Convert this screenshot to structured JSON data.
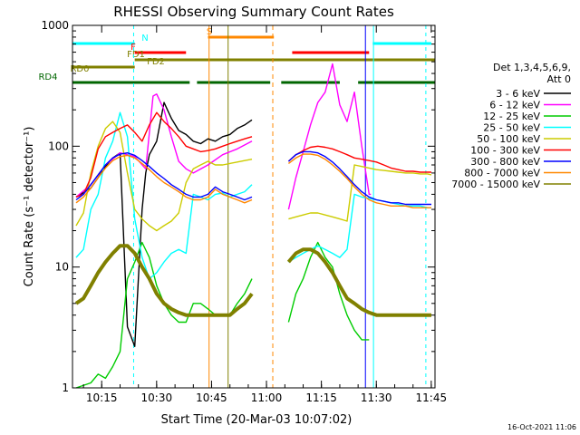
{
  "chart_data": {
    "type": "line",
    "title": "RHESSI Observing Summary Count Rates",
    "xlabel": "Start Time (20-Mar-03 10:07:02)",
    "ylabel": "Count Rate (s⁻¹ detector⁻¹)",
    "yscale": "log",
    "xlim_minutes": [
      7,
      106
    ],
    "ylim": [
      1,
      1000
    ],
    "x_ticks": [
      "10:15",
      "10:30",
      "10:45",
      "11:00",
      "11:15",
      "11:30",
      "11:45"
    ],
    "y_ticks": [
      "1",
      "10",
      "100",
      "1000"
    ],
    "legend_header": [
      "Det 1,3,4,5,6,9,",
      "Att 0"
    ],
    "footer_date": "16-Oct-2021 11:06",
    "legend_position": "right",
    "series": [
      {
        "name": "3 - 6 keV",
        "color": "#000000",
        "x": [
          8,
          12,
          14,
          16,
          18,
          20,
          22,
          24,
          26,
          27,
          28,
          30,
          32,
          34,
          36,
          38,
          40,
          42,
          44,
          46,
          48,
          50,
          52,
          54,
          56
        ],
        "y": [
          38,
          45,
          55,
          68,
          80,
          88,
          3.2,
          2.2,
          30,
          60,
          85,
          110,
          230,
          170,
          135,
          125,
          110,
          105,
          115,
          110,
          120,
          125,
          140,
          150,
          165
        ]
      },
      {
        "name": "6 - 12 keV",
        "color": "#ff00ff",
        "x": [
          8,
          12,
          16,
          20,
          24,
          27,
          29,
          30,
          32,
          34,
          36,
          38,
          40,
          44,
          48,
          52,
          56,
          66,
          68,
          70,
          72,
          74,
          76,
          78,
          80,
          82,
          84,
          86,
          88,
          88.5
        ],
        "y": [
          38,
          48,
          70,
          88,
          82,
          65,
          260,
          270,
          200,
          120,
          75,
          65,
          60,
          70,
          85,
          95,
          110,
          30,
          55,
          90,
          150,
          230,
          280,
          480,
          220,
          160,
          280,
          100,
          40,
          40
        ]
      },
      {
        "name": "12 - 25 keV",
        "color": "#00cc00",
        "x": [
          8,
          12,
          14,
          16,
          18,
          20,
          22,
          24,
          26,
          28,
          30,
          32,
          34,
          36,
          38,
          40,
          42,
          44,
          46,
          48,
          50,
          52,
          54,
          56,
          66,
          68,
          70,
          72,
          74,
          76,
          78,
          80,
          82,
          84,
          86,
          88
        ],
        "y": [
          1,
          1.1,
          1.3,
          1.2,
          1.5,
          2,
          8,
          11,
          16,
          12,
          7,
          5,
          4,
          3.5,
          3.5,
          5,
          5,
          4.5,
          4,
          4,
          4,
          5,
          6,
          8,
          3.5,
          6,
          8,
          12,
          16,
          12,
          10,
          6,
          4,
          3,
          2.5,
          2.5
        ]
      },
      {
        "name": "25 - 50 keV",
        "color": "#00ffff",
        "x": [
          8,
          10,
          12,
          14,
          16,
          18,
          20,
          22,
          24,
          26,
          28,
          30,
          32,
          34,
          36,
          38,
          40,
          42,
          44,
          46,
          48,
          50,
          52,
          54,
          56,
          66,
          68,
          70,
          72,
          74,
          76,
          78,
          80,
          82,
          84,
          86,
          88,
          90,
          92,
          94,
          96,
          98,
          100,
          102,
          104,
          105
        ],
        "y": [
          12,
          14,
          30,
          40,
          80,
          110,
          190,
          120,
          25,
          12,
          8,
          9,
          11,
          13,
          14,
          13,
          40,
          38,
          36,
          40,
          41,
          38,
          40,
          42,
          48,
          11,
          12,
          13,
          14,
          15,
          14,
          13,
          12,
          14,
          40,
          38,
          37,
          36,
          35,
          34,
          33,
          32,
          32,
          32,
          31,
          31
        ]
      },
      {
        "name": "50 - 100 keV",
        "color": "#cccc00",
        "x": [
          8,
          10,
          12,
          14,
          16,
          18,
          20,
          22,
          24,
          26,
          28,
          30,
          32,
          34,
          36,
          38,
          40,
          42,
          44,
          46,
          48,
          50,
          52,
          54,
          56,
          66,
          68,
          70,
          72,
          74,
          76,
          78,
          80,
          82,
          84,
          86,
          88,
          90,
          92,
          94,
          96,
          98,
          100,
          102,
          104,
          105
        ],
        "y": [
          22,
          28,
          60,
          100,
          140,
          160,
          130,
          60,
          30,
          25,
          22,
          20,
          22,
          24,
          28,
          50,
          65,
          70,
          75,
          70,
          70,
          72,
          74,
          76,
          78,
          25,
          26,
          27,
          28,
          28,
          27,
          26,
          25,
          24,
          70,
          68,
          66,
          64,
          63,
          62,
          61,
          60,
          60,
          59,
          59,
          58
        ]
      },
      {
        "name": "100 - 300 keV",
        "color": "#ff0000",
        "x": [
          8,
          10,
          12,
          14,
          16,
          18,
          20,
          22,
          24,
          26,
          28,
          30,
          32,
          34,
          36,
          38,
          40,
          42,
          44,
          46,
          48,
          50,
          52,
          54,
          56,
          66,
          68,
          70,
          72,
          74,
          76,
          78,
          80,
          82,
          84,
          86,
          88,
          90,
          92,
          94,
          96,
          98,
          100,
          102,
          104,
          105
        ],
        "y": [
          38,
          40,
          55,
          95,
          120,
          130,
          140,
          150,
          130,
          110,
          150,
          190,
          160,
          140,
          120,
          100,
          95,
          90,
          92,
          95,
          100,
          105,
          110,
          115,
          120,
          75,
          85,
          92,
          98,
          100,
          98,
          95,
          90,
          85,
          80,
          78,
          76,
          74,
          70,
          66,
          64,
          62,
          62,
          61,
          61,
          61
        ]
      },
      {
        "name": "300 - 800 keV",
        "color": "#0000ff",
        "x": [
          8,
          10,
          12,
          14,
          16,
          18,
          20,
          22,
          24,
          26,
          28,
          30,
          32,
          34,
          36,
          38,
          40,
          42,
          44,
          46,
          48,
          50,
          52,
          54,
          56,
          66,
          68,
          70,
          72,
          74,
          76,
          78,
          80,
          82,
          84,
          86,
          88,
          90,
          92,
          94,
          96,
          98,
          100,
          102,
          104,
          105
        ],
        "y": [
          36,
          40,
          48,
          58,
          70,
          80,
          86,
          88,
          84,
          76,
          68,
          60,
          54,
          48,
          44,
          40,
          38,
          38,
          40,
          46,
          42,
          40,
          38,
          36,
          38,
          75,
          85,
          90,
          90,
          88,
          82,
          74,
          65,
          56,
          48,
          42,
          38,
          36,
          35,
          34,
          34,
          33,
          33,
          33,
          33,
          33
        ]
      },
      {
        "name": "800 - 7000 keV",
        "color": "#ff8800",
        "x": [
          8,
          10,
          12,
          14,
          16,
          18,
          20,
          22,
          24,
          26,
          28,
          30,
          32,
          34,
          36,
          38,
          40,
          42,
          44,
          46,
          48,
          50,
          52,
          54,
          56,
          66,
          68,
          70,
          72,
          74,
          76,
          78,
          80,
          82,
          84,
          86,
          88,
          90,
          92,
          94,
          96,
          98,
          100,
          102,
          104,
          105
        ],
        "y": [
          34,
          38,
          45,
          55,
          66,
          76,
          82,
          84,
          80,
          72,
          64,
          56,
          50,
          46,
          42,
          38,
          36,
          36,
          38,
          44,
          40,
          38,
          36,
          34,
          36,
          72,
          80,
          86,
          86,
          84,
          78,
          70,
          62,
          54,
          46,
          40,
          36,
          34,
          33,
          32,
          32,
          32,
          31,
          31,
          31,
          31
        ]
      },
      {
        "name": "7000 - 15000 keV",
        "color": "#808000",
        "x": [
          8,
          10,
          12,
          14,
          16,
          18,
          20,
          22,
          24,
          26,
          28,
          30,
          32,
          34,
          36,
          38,
          40,
          42,
          44,
          46,
          48,
          50,
          52,
          54,
          56,
          66,
          68,
          70,
          72,
          74,
          76,
          78,
          80,
          82,
          84,
          86,
          88,
          90,
          92,
          94,
          96,
          98,
          100,
          102,
          104,
          105
        ],
        "y": [
          5,
          5.5,
          7,
          9,
          11,
          13,
          15,
          15,
          13,
          10,
          8,
          6,
          5,
          4.5,
          4.2,
          4,
          4,
          4,
          4,
          4,
          4,
          4,
          4.5,
          5,
          6,
          11,
          13,
          14,
          14,
          13,
          11,
          9,
          7,
          5.5,
          5,
          4.5,
          4.2,
          4,
          4,
          4,
          4,
          4,
          4,
          4,
          4,
          4
        ]
      }
    ],
    "state_bars": [
      {
        "label": "N",
        "color": "#00ffff",
        "segments": [
          [
            7,
            24
          ],
          [
            89,
            105
          ]
        ]
      },
      {
        "label": "F",
        "color": "#ff0000",
        "segments": [
          [
            24,
            38
          ],
          [
            67,
            88
          ]
        ]
      },
      {
        "label": "FD1",
        "color": "#808000",
        "segments": [
          [
            24,
            106
          ]
        ]
      },
      {
        "label": "FD2",
        "color": "#808000",
        "segments": [
          [
            7,
            24
          ]
        ]
      },
      {
        "label": "RD0",
        "color": "#808000",
        "segments": []
      },
      {
        "label": "RD4",
        "color": "#006600",
        "segments": [
          [
            7,
            39
          ],
          [
            41,
            61
          ],
          [
            64,
            80
          ],
          [
            85,
            106
          ]
        ]
      },
      {
        "label": "S",
        "color": "#ff8800",
        "segments": [
          [
            44,
            62
          ]
        ]
      }
    ]
  }
}
